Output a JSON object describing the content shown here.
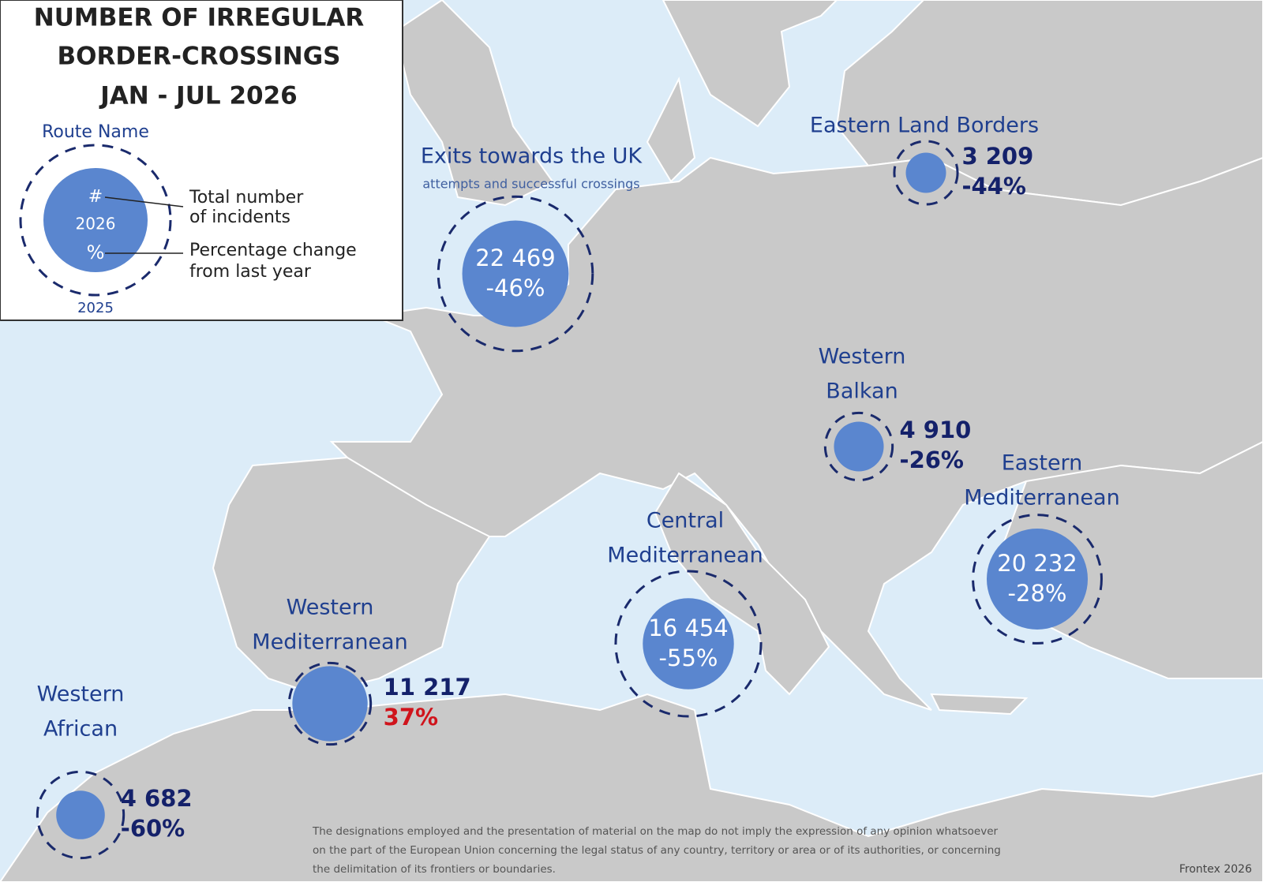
{
  "legend": {
    "title": [
      "NUMBER OF IRREGULAR",
      "BORDER-CROSSINGS",
      "JAN - JUL  2026"
    ],
    "route_name": "Route Name",
    "count_symbol": "#",
    "year_current": "2026",
    "change_symbol": "%",
    "count_text": [
      "Total number",
      "of incidents"
    ],
    "change_text": [
      "Percentage change",
      "from last year"
    ],
    "year_previous": "2025"
  },
  "routes": [
    {
      "name": [
        "Exits towards the UK"
      ],
      "subtitle": "attempts and successful crossings",
      "count": 22469,
      "count_label": "22 469",
      "change": -46,
      "change_label": "-46%"
    },
    {
      "name": [
        "Eastern Land Borders"
      ],
      "count": 3209,
      "count_label": "3 209",
      "change": -44,
      "change_label": "-44%"
    },
    {
      "name": [
        "Western",
        "Balkan"
      ],
      "count": 4910,
      "count_label": "4 910",
      "change": -26,
      "change_label": "-26%"
    },
    {
      "name": [
        "Eastern",
        "Mediterranean"
      ],
      "count": 20232,
      "count_label": "20 232",
      "change": -28,
      "change_label": "-28%"
    },
    {
      "name": [
        "Central",
        "Mediterranean"
      ],
      "count": 16454,
      "count_label": "16 454",
      "change": -55,
      "change_label": "-55%"
    },
    {
      "name": [
        "Western",
        "Mediterranean"
      ],
      "count": 11217,
      "count_label": "11 217",
      "change": 37,
      "change_label": "37%"
    },
    {
      "name": [
        "Western",
        "African"
      ],
      "count": 4682,
      "count_label": "4 682",
      "change": -60,
      "change_label": "-60%"
    }
  ],
  "disclaimer": [
    "The designations employed and the presentation of material on the map do not imply the expression of any opinion whatsoever",
    "on the part of the European Union concerning the legal status of any country, territory or area or of its authorities, or concerning",
    "the delimitation of its frontiers or boundaries."
  ],
  "credit": "Frontex 2026"
}
